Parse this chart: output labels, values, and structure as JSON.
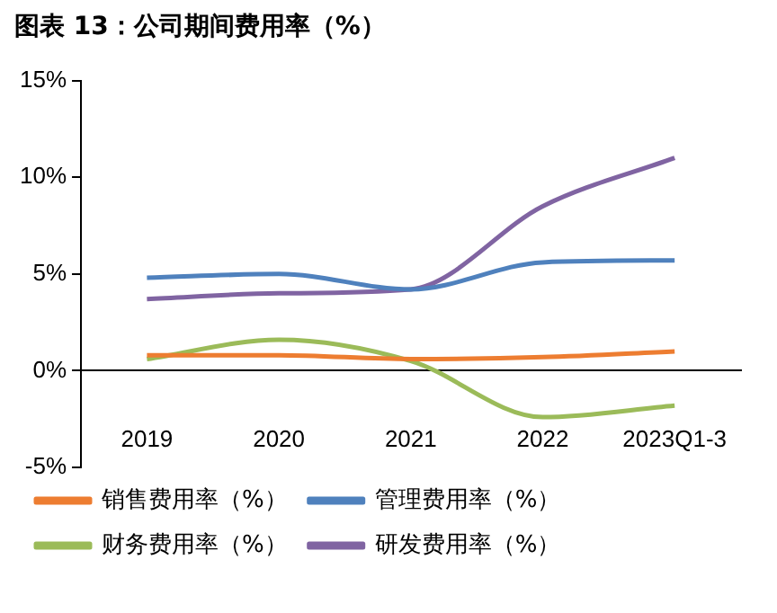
{
  "chart_data": {
    "type": "line",
    "title": "图表 13：公司期间费用率（%）",
    "categories": [
      "2019",
      "2020",
      "2021",
      "2022",
      "2023Q1-3"
    ],
    "series": [
      {
        "name": "销售费用率（%）",
        "color": "#ed7d31",
        "values": [
          0.8,
          0.8,
          0.6,
          0.7,
          1.0
        ]
      },
      {
        "name": "管理费用率（%）",
        "color": "#4f81bd",
        "values": [
          4.8,
          5.0,
          4.2,
          5.6,
          5.7
        ]
      },
      {
        "name": "财务费用率（%）",
        "color": "#9bbb59",
        "values": [
          0.6,
          1.6,
          0.5,
          -2.4,
          -1.8
        ]
      },
      {
        "name": "研发费用率（%）",
        "color": "#8064a2",
        "values": [
          3.7,
          4.0,
          4.2,
          8.5,
          11.0
        ]
      }
    ],
    "ylim": [
      -5,
      15
    ],
    "yticks": [
      {
        "value": -5,
        "label": "-5%"
      },
      {
        "value": 0,
        "label": "0%"
      },
      {
        "value": 5,
        "label": "5%"
      },
      {
        "value": 10,
        "label": "10%"
      },
      {
        "value": 15,
        "label": "15%"
      }
    ],
    "grid": false,
    "legend": "bottom",
    "marker": "none",
    "line_style": "solid"
  }
}
